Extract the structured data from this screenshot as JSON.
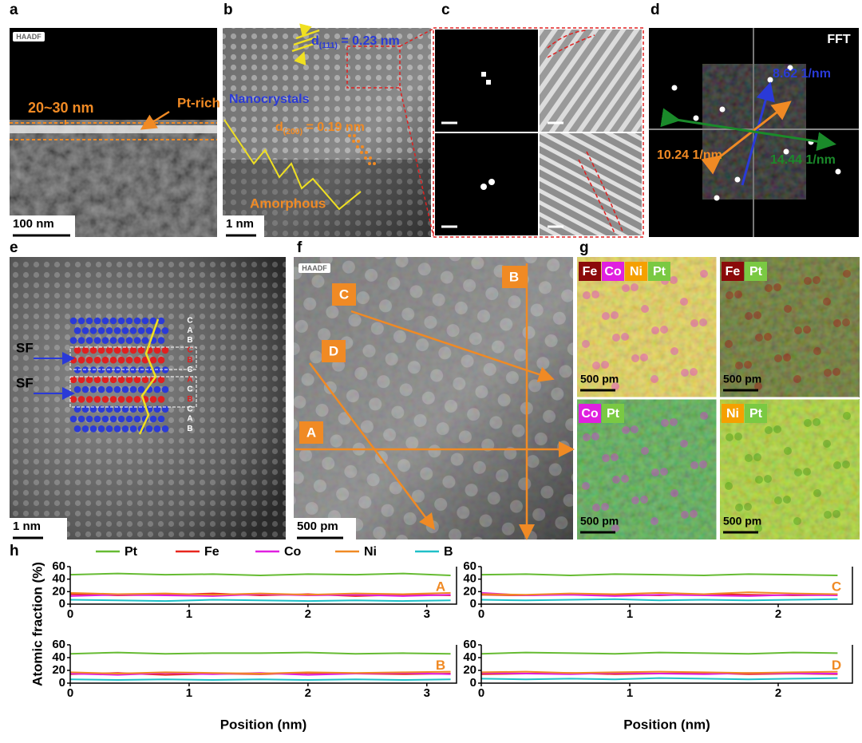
{
  "panels": {
    "a": {
      "label": "a",
      "badge": "HAADF",
      "thickness": "20~30 nm",
      "region": "Pt-rich",
      "scale": "100 nm"
    },
    "b": {
      "label": "b",
      "d111": {
        "symbol": "d",
        "sub": "(111)",
        "value": " = 0.23 nm"
      },
      "nanocrystals": "Nanocrystals",
      "d200": {
        "symbol": "d",
        "sub": "(200)",
        "value": " = 0.19 nm"
      },
      "amorphous": "Amorphous",
      "scale": "1 nm"
    },
    "c": {
      "label": "c"
    },
    "d": {
      "label": "d",
      "fft": "FFT",
      "blue": "8.62 1/nm",
      "orange": "10.24 1/nm",
      "green": "14.44 1/nm"
    },
    "e": {
      "label": "e",
      "sf": [
        "SF",
        "SF"
      ],
      "scale": "1 nm",
      "stacking": [
        {
          "letter": "C",
          "color": "#ffffff"
        },
        {
          "letter": "A",
          "color": "#ffffff"
        },
        {
          "letter": "B",
          "color": "#ffffff"
        },
        {
          "letter": "C",
          "color": "#e02020"
        },
        {
          "letter": "B",
          "color": "#e02020"
        },
        {
          "letter": "C",
          "color": "#ffffff"
        },
        {
          "letter": "A",
          "color": "#e02020"
        },
        {
          "letter": "C",
          "color": "#ffffff"
        },
        {
          "letter": "B",
          "color": "#e02020"
        },
        {
          "letter": "C",
          "color": "#ffffff"
        },
        {
          "letter": "A",
          "color": "#ffffff"
        },
        {
          "letter": "B",
          "color": "#ffffff"
        }
      ]
    },
    "f": {
      "label": "f",
      "badge": "HAADF",
      "lines": [
        "A",
        "B",
        "C",
        "D"
      ],
      "scale": "500 pm"
    },
    "g": {
      "label": "g",
      "maps": [
        {
          "elements": [
            {
              "name": "Fe",
              "color": "#8b0a0a"
            },
            {
              "name": "Co",
              "color": "#e020e0"
            },
            {
              "name": "Ni",
              "color": "#f5a000"
            },
            {
              "name": "Pt",
              "color": "#7ac943"
            }
          ],
          "scale": "500 pm"
        },
        {
          "elements": [
            {
              "name": "Fe",
              "color": "#8b0a0a"
            },
            {
              "name": "Pt",
              "color": "#7ac943"
            }
          ],
          "scale": "500 pm"
        },
        {
          "elements": [
            {
              "name": "Co",
              "color": "#e020e0"
            },
            {
              "name": "Pt",
              "color": "#7ac943"
            }
          ],
          "scale": "500 pm"
        },
        {
          "elements": [
            {
              "name": "Ni",
              "color": "#f5a000"
            },
            {
              "name": "Pt",
              "color": "#7ac943"
            }
          ],
          "scale": "500 pm"
        }
      ]
    },
    "h": {
      "label": "h"
    }
  },
  "chart_data": [
    {
      "type": "line",
      "annotation": "A",
      "ylabel": "Atomic fraction (%)",
      "x": [
        0,
        0.4,
        0.8,
        1.2,
        1.6,
        2.0,
        2.4,
        2.8,
        3.2
      ],
      "xlim": [
        0,
        3.25
      ],
      "xticks": [
        0,
        1,
        2,
        3
      ],
      "ylim": [
        0,
        60
      ],
      "yticks": [
        0,
        20,
        40,
        60
      ],
      "series": [
        {
          "name": "Pt",
          "color": "#66bb33",
          "values": [
            47,
            49,
            47,
            48,
            46,
            48,
            47,
            49,
            46
          ]
        },
        {
          "name": "Fe",
          "color": "#e8261e",
          "values": [
            16,
            14,
            15,
            17,
            14,
            16,
            13,
            15,
            14
          ]
        },
        {
          "name": "Co",
          "color": "#e020e0",
          "values": [
            13,
            15,
            14,
            13,
            16,
            14,
            15,
            13,
            15
          ]
        },
        {
          "name": "Ni",
          "color": "#f08a24",
          "values": [
            18,
            16,
            17,
            15,
            17,
            15,
            17,
            16,
            18
          ]
        },
        {
          "name": "B",
          "color": "#20c0c8",
          "values": [
            7,
            6,
            5,
            7,
            6,
            5,
            6,
            5,
            6
          ]
        }
      ]
    },
    {
      "type": "line",
      "annotation": "C",
      "x": [
        0,
        0.3,
        0.6,
        0.9,
        1.2,
        1.5,
        1.8,
        2.1,
        2.4
      ],
      "xlim": [
        0,
        2.5
      ],
      "xticks": [
        0,
        1,
        2
      ],
      "ylim": [
        0,
        60
      ],
      "yticks": [
        0,
        20,
        40,
        60
      ],
      "series": [
        {
          "color": "#66bb33",
          "values": [
            47,
            48,
            46,
            48,
            47,
            46,
            48,
            47,
            46
          ]
        },
        {
          "color": "#e8261e",
          "values": [
            15,
            14,
            16,
            15,
            14,
            16,
            15,
            14,
            15
          ]
        },
        {
          "color": "#e020e0",
          "values": [
            18,
            14,
            15,
            13,
            15,
            14,
            13,
            15,
            14
          ]
        },
        {
          "color": "#f08a24",
          "values": [
            16,
            15,
            17,
            16,
            18,
            16,
            19,
            17,
            16
          ]
        },
        {
          "color": "#20c0c8",
          "values": [
            7,
            6,
            7,
            8,
            6,
            7,
            6,
            7,
            8
          ]
        }
      ]
    },
    {
      "type": "line",
      "annotation": "B",
      "x": [
        0,
        0.4,
        0.8,
        1.2,
        1.6,
        2.0,
        2.4,
        2.8,
        3.2
      ],
      "xlim": [
        0,
        3.25
      ],
      "xticks": [
        0,
        1,
        2,
        3
      ],
      "ylim": [
        0,
        60
      ],
      "yticks": [
        0,
        20,
        40,
        60
      ],
      "xlabel": "Position (nm)",
      "series": [
        {
          "color": "#66bb33",
          "values": [
            46,
            48,
            46,
            47,
            47,
            48,
            46,
            47,
            46
          ]
        },
        {
          "color": "#e8261e",
          "values": [
            14,
            16,
            13,
            15,
            14,
            16,
            15,
            14,
            15
          ]
        },
        {
          "color": "#e020e0",
          "values": [
            15,
            13,
            16,
            14,
            16,
            13,
            15,
            16,
            14
          ]
        },
        {
          "color": "#f08a24",
          "values": [
            17,
            15,
            17,
            16,
            15,
            17,
            16,
            17,
            18
          ]
        },
        {
          "color": "#20c0c8",
          "values": [
            6,
            5,
            6,
            5,
            6,
            5,
            6,
            5,
            6
          ]
        }
      ]
    },
    {
      "type": "line",
      "annotation": "D",
      "x": [
        0,
        0.3,
        0.6,
        0.9,
        1.2,
        1.5,
        1.8,
        2.1,
        2.4
      ],
      "xlim": [
        0,
        2.5
      ],
      "xticks": [
        0,
        1,
        2
      ],
      "ylim": [
        0,
        60
      ],
      "yticks": [
        0,
        20,
        40,
        60
      ],
      "xlabel": "Position (nm)",
      "series": [
        {
          "color": "#66bb33",
          "values": [
            46,
            48,
            47,
            46,
            48,
            47,
            46,
            48,
            47
          ]
        },
        {
          "color": "#e8261e",
          "values": [
            14,
            15,
            16,
            14,
            15,
            16,
            14,
            15,
            14
          ]
        },
        {
          "color": "#e020e0",
          "values": [
            16,
            15,
            14,
            16,
            15,
            14,
            16,
            15,
            15
          ]
        },
        {
          "color": "#f08a24",
          "values": [
            17,
            18,
            16,
            17,
            18,
            17,
            16,
            17,
            18
          ]
        },
        {
          "color": "#20c0c8",
          "values": [
            7,
            6,
            7,
            6,
            8,
            7,
            6,
            7,
            8
          ]
        }
      ]
    }
  ]
}
